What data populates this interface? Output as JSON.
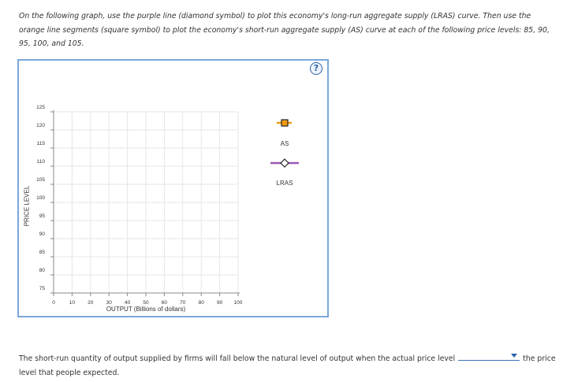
{
  "instructions": "On the following graph, use the purple line (diamond symbol) to plot this economy's long-run aggregate supply (LRAS) curve. Then use the orange line segments (square symbol) to plot the economy's short-run aggregate supply (AS) curve at each of the following price levels: 85, 90, 95, 100, and 105.",
  "help_label": "?",
  "chart_data": {
    "type": "line",
    "xlabel": "OUTPUT (Billions of dollars)",
    "ylabel": "PRICE LEVEL",
    "xlim": [
      0,
      100
    ],
    "ylim": [
      75,
      125
    ],
    "x_ticks": [
      "0",
      "10",
      "20",
      "30",
      "40",
      "50",
      "60",
      "70",
      "80",
      "90",
      "100"
    ],
    "y_ticks": [
      "75",
      "80",
      "85",
      "90",
      "95",
      "100",
      "105",
      "110",
      "115",
      "120",
      "125"
    ],
    "grid": true,
    "series": []
  },
  "legend": {
    "as": {
      "label": "AS",
      "color": "#f39c12",
      "marker": "square"
    },
    "lras": {
      "label": "LRAS",
      "color": "#9b59b6",
      "marker": "diamond"
    }
  },
  "question": {
    "before": "The short-run quantity of output supplied by firms will fall below the natural level of output when the actual price level",
    "selected": "",
    "after": "the price level that people expected."
  }
}
